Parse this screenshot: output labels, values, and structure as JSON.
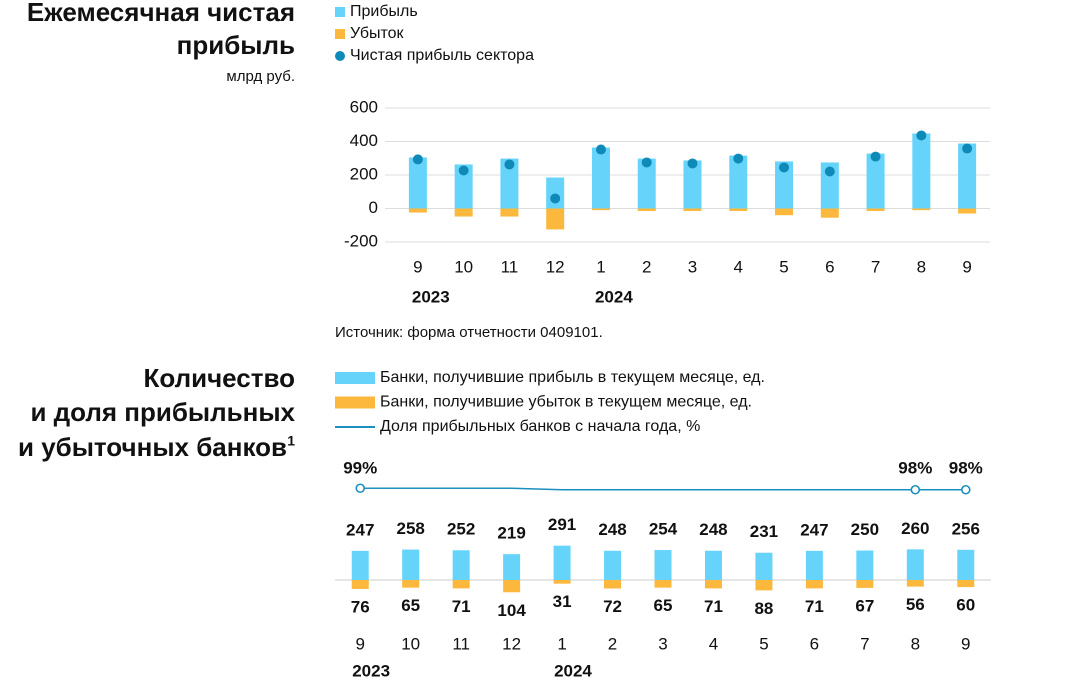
{
  "chart_data": [
    {
      "type": "bar",
      "title": [
        "Ежемесячная чистая",
        "прибыль"
      ],
      "subtitle": "млрд руб.",
      "categories": [
        "9",
        "10",
        "11",
        "12",
        "1",
        "2",
        "3",
        "4",
        "5",
        "6",
        "7",
        "8",
        "9"
      ],
      "x_groups": [
        {
          "label": "2023",
          "span": 4
        },
        {
          "label": "2024",
          "span": 9
        }
      ],
      "series": [
        {
          "name": "Прибыль",
          "color": "#66d4fa",
          "style": "bar",
          "values": [
            305,
            263,
            298,
            185,
            364,
            298,
            287,
            316,
            281,
            275,
            328,
            448,
            388
          ]
        },
        {
          "name": "Убыток",
          "color": "#fbb83c",
          "style": "bar",
          "values": [
            -24,
            -48,
            -48,
            -125,
            -10,
            -15,
            -15,
            -15,
            -40,
            -55,
            -15,
            -10,
            -30
          ]
        },
        {
          "name": "Чистая прибыль сектора",
          "color": "#0f8ab8",
          "style": "dot",
          "values": [
            293,
            227,
            263,
            60,
            352,
            275,
            269,
            298,
            245,
            221,
            310,
            436,
            358
          ]
        }
      ],
      "ylim": [
        -200,
        600
      ],
      "yticks": [
        -200,
        0,
        200,
        400,
        600
      ],
      "grid": true,
      "source": "Источник: форма отчетности 0409101."
    },
    {
      "type": "bar",
      "title": [
        "Количество",
        "и доля прибыльных",
        "и убыточных банков"
      ],
      "title_note": "1",
      "categories": [
        "9",
        "10",
        "11",
        "12",
        "1",
        "2",
        "3",
        "4",
        "5",
        "6",
        "7",
        "8",
        "9"
      ],
      "x_groups": [
        {
          "label": "2023",
          "span": 4
        },
        {
          "label": "2024",
          "span": 9
        }
      ],
      "series": [
        {
          "name": "Банки, получившие прибыль в текущем месяце, ед.",
          "color": "#66d4fa",
          "style": "bar",
          "direction": "up",
          "values": [
            247,
            258,
            252,
            219,
            291,
            248,
            254,
            248,
            231,
            247,
            250,
            260,
            256
          ]
        },
        {
          "name": "Банки, получившие убыток в текущем месяце, ед.",
          "color": "#fbb83c",
          "style": "bar",
          "direction": "down",
          "values": [
            76,
            65,
            71,
            104,
            31,
            72,
            65,
            71,
            88,
            71,
            67,
            56,
            60
          ]
        },
        {
          "name": "Доля прибыльных банков с начала года, %",
          "color": "#1a8fc0",
          "style": "line",
          "values": [
            99,
            99,
            99,
            99,
            98,
            98,
            98,
            98,
            98,
            98,
            98,
            98,
            98
          ],
          "value_labels": [
            "99%",
            null,
            null,
            null,
            null,
            null,
            null,
            null,
            null,
            null,
            null,
            "98%",
            "98%"
          ]
        }
      ]
    }
  ]
}
